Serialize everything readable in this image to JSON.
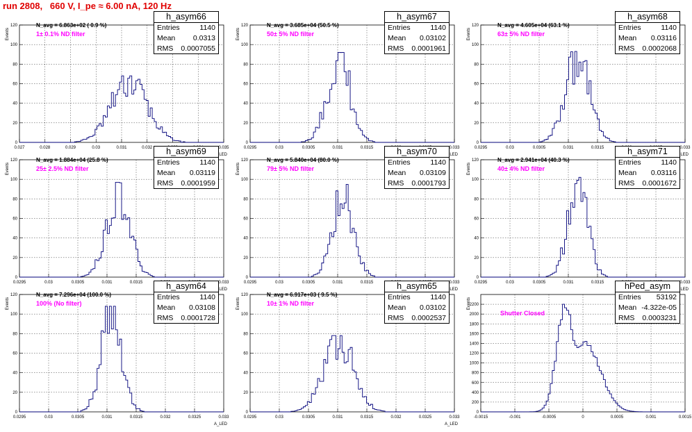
{
  "title": "run 2808,   660 V, I_pe ≈ 6.00 nA, 120 Hz",
  "colors": {
    "title": "#e00000",
    "hist": "#00007a",
    "filter_label": "#ff00ff",
    "grid": "#000000"
  },
  "chart_data": [
    {
      "type": "histogram",
      "name": "h_asym66",
      "entries": "1140",
      "mean": "0.0313",
      "rms": "0.0007055",
      "navg": "N_avg = 6.863e+02 ( 0.9 %)",
      "label": "1± 0.1% ND filter",
      "xlim": [
        0.027,
        0.035
      ],
      "ylim": [
        0,
        120
      ],
      "yticks": [
        0,
        20,
        40,
        60,
        80,
        100,
        120
      ],
      "xticks": [
        {
          "v": 0.027,
          "t": "0.027"
        },
        {
          "v": 0.028,
          "t": "0.028"
        },
        {
          "v": 0.029,
          "t": "0.029"
        },
        {
          "v": 0.03,
          "t": "0.03"
        },
        {
          "v": 0.031,
          "t": "0.031"
        },
        {
          "v": 0.032,
          "t": "0.032"
        },
        {
          "v": 0.033,
          "t": "0.033"
        },
        {
          "v": 0.034,
          "t": "0.034"
        },
        {
          "v": 0.035,
          "t": "0.035"
        }
      ],
      "ylabel": "Events",
      "xlabel": "A_LED",
      "peak": 68,
      "mu": 0.0313,
      "sigma": 0.0007
    },
    {
      "type": "histogram",
      "name": "h_asym67",
      "entries": "1140",
      "mean": "0.03102",
      "rms": "0.0001961",
      "navg": "N_avg = 3.685e+04 (50.5 %)",
      "label": "50± 5% ND filter",
      "xlim": [
        0.0295,
        0.033
      ],
      "ylim": [
        0,
        120
      ],
      "yticks": [
        0,
        20,
        40,
        60,
        80,
        100,
        120
      ],
      "xticks": [
        {
          "v": 0.0295,
          "t": "0.0295"
        },
        {
          "v": 0.03,
          "t": "0.03"
        },
        {
          "v": 0.0305,
          "t": "0.0305"
        },
        {
          "v": 0.031,
          "t": "0.031"
        },
        {
          "v": 0.0315,
          "t": "0.0315"
        },
        {
          "v": 0.032,
          "t": "0.032"
        },
        {
          "v": 0.0325,
          "t": "0.0325"
        },
        {
          "v": 0.033,
          "t": "0.033"
        }
      ],
      "ylabel": "Events",
      "xlabel": "A_LED",
      "peak": 92,
      "mu": 0.03102,
      "sigma": 0.000196
    },
    {
      "type": "histogram",
      "name": "h_asym68",
      "entries": "1140",
      "mean": "0.03116",
      "rms": "0.0002068",
      "navg": "N_avg = 4.605e+04 (63.1 %)",
      "label": "63± 5% ND filter",
      "xlim": [
        0.0295,
        0.033
      ],
      "ylim": [
        0,
        120
      ],
      "yticks": [
        0,
        20,
        40,
        60,
        80,
        100,
        120
      ],
      "xticks": [
        {
          "v": 0.0295,
          "t": "0.0295"
        },
        {
          "v": 0.03,
          "t": "0.03"
        },
        {
          "v": 0.0305,
          "t": "0.0305"
        },
        {
          "v": 0.031,
          "t": "0.031"
        },
        {
          "v": 0.0315,
          "t": "0.0315"
        },
        {
          "v": 0.032,
          "t": "0.032"
        },
        {
          "v": 0.0325,
          "t": "0.0325"
        },
        {
          "v": 0.033,
          "t": "0.033"
        }
      ],
      "ylabel": "Events",
      "xlabel": "A_LED",
      "peak": 93,
      "mu": 0.03116,
      "sigma": 0.000207
    },
    {
      "type": "histogram",
      "name": "h_asym69",
      "entries": "1140",
      "mean": "0.03119",
      "rms": "0.0001959",
      "navg": "N_avg = 1.884e+04 (25.8 %)",
      "label": "25± 2.5% ND filter",
      "xlim": [
        0.0295,
        0.033
      ],
      "ylim": [
        0,
        120
      ],
      "yticks": [
        0,
        20,
        40,
        60,
        80,
        100,
        120
      ],
      "xticks": [
        {
          "v": 0.0295,
          "t": "0.0295"
        },
        {
          "v": 0.03,
          "t": "0.03"
        },
        {
          "v": 0.0305,
          "t": "0.0305"
        },
        {
          "v": 0.031,
          "t": "0.031"
        },
        {
          "v": 0.0315,
          "t": "0.0315"
        },
        {
          "v": 0.032,
          "t": "0.032"
        },
        {
          "v": 0.0325,
          "t": "0.0325"
        },
        {
          "v": 0.033,
          "t": "0.033"
        }
      ],
      "ylabel": "Events",
      "xlabel": "A_LED",
      "peak": 97,
      "mu": 0.03119,
      "sigma": 0.000196
    },
    {
      "type": "histogram",
      "name": "h_asym70",
      "entries": "1140",
      "mean": "0.03109",
      "rms": "0.0001793",
      "navg": "N_avg = 5.840e+04 (80.0 %)",
      "label": "79± 5% ND filter",
      "xlim": [
        0.0295,
        0.033
      ],
      "ylim": [
        0,
        120
      ],
      "yticks": [
        0,
        20,
        40,
        60,
        80,
        100,
        120
      ],
      "xticks": [
        {
          "v": 0.0295,
          "t": "0.0295"
        },
        {
          "v": 0.03,
          "t": "0.03"
        },
        {
          "v": 0.0305,
          "t": "0.0305"
        },
        {
          "v": 0.031,
          "t": "0.031"
        },
        {
          "v": 0.0315,
          "t": "0.0315"
        },
        {
          "v": 0.032,
          "t": "0.032"
        },
        {
          "v": 0.0325,
          "t": "0.0325"
        },
        {
          "v": 0.033,
          "t": "0.033"
        }
      ],
      "ylabel": "Events",
      "xlabel": "A_LED",
      "peak": 96,
      "mu": 0.03109,
      "sigma": 0.000179
    },
    {
      "type": "histogram",
      "name": "h_asym71",
      "entries": "1140",
      "mean": "0.03116",
      "rms": "0.0001672",
      "navg": "N_avg = 2.941e+04 (40.3 %)",
      "label": "40± 4% ND filter",
      "xlim": [
        0.0295,
        0.033
      ],
      "ylim": [
        0,
        120
      ],
      "yticks": [
        0,
        20,
        40,
        60,
        80,
        100,
        120
      ],
      "xticks": [
        {
          "v": 0.0295,
          "t": "0.0295"
        },
        {
          "v": 0.03,
          "t": "0.03"
        },
        {
          "v": 0.0305,
          "t": "0.0305"
        },
        {
          "v": 0.031,
          "t": "0.031"
        },
        {
          "v": 0.0315,
          "t": "0.0315"
        },
        {
          "v": 0.032,
          "t": "0.032"
        },
        {
          "v": 0.0325,
          "t": "0.0325"
        },
        {
          "v": 0.033,
          "t": "0.033"
        }
      ],
      "ylabel": "Events",
      "xlabel": "A_LED",
      "peak": 102,
      "mu": 0.03116,
      "sigma": 0.000167
    },
    {
      "type": "histogram",
      "name": "h_asym64",
      "entries": "1140",
      "mean": "0.03108",
      "rms": "0.0001728",
      "navg": "N_avg = 7.296e+04 (100.0 %)",
      "label": "100% (No filter)",
      "xlim": [
        0.0295,
        0.033
      ],
      "ylim": [
        0,
        120
      ],
      "yticks": [
        0,
        20,
        40,
        60,
        80,
        100,
        120
      ],
      "xticks": [
        {
          "v": 0.0295,
          "t": "0.0295"
        },
        {
          "v": 0.03,
          "t": "0.03"
        },
        {
          "v": 0.0305,
          "t": "0.0305"
        },
        {
          "v": 0.031,
          "t": "0.031"
        },
        {
          "v": 0.0315,
          "t": "0.0315"
        },
        {
          "v": 0.032,
          "t": "0.032"
        },
        {
          "v": 0.0325,
          "t": "0.0325"
        },
        {
          "v": 0.033,
          "t": "0.033"
        }
      ],
      "ylabel": "Events",
      "xlabel": "A_LED",
      "peak": 108,
      "mu": 0.03108,
      "sigma": 0.000173
    },
    {
      "type": "histogram",
      "name": "h_asym65",
      "entries": "1140",
      "mean": "0.03102",
      "rms": "0.0002537",
      "navg": "N_avg = 6.917e+03 ( 9.5 %)",
      "label": "10± 1% ND filter",
      "xlim": [
        0.0295,
        0.033
      ],
      "ylim": [
        0,
        120
      ],
      "yticks": [
        0,
        20,
        40,
        60,
        80,
        100,
        120
      ],
      "xticks": [
        {
          "v": 0.0295,
          "t": "0.0295"
        },
        {
          "v": 0.03,
          "t": "0.03"
        },
        {
          "v": 0.0305,
          "t": "0.0305"
        },
        {
          "v": 0.031,
          "t": "0.031"
        },
        {
          "v": 0.0315,
          "t": "0.0315"
        },
        {
          "v": 0.032,
          "t": "0.032"
        },
        {
          "v": 0.0325,
          "t": "0.0325"
        },
        {
          "v": 0.033,
          "t": "0.033"
        }
      ],
      "ylabel": "Events",
      "xlabel": "A_LED",
      "peak": 78,
      "mu": 0.03102,
      "sigma": 0.000254
    },
    {
      "type": "histogram",
      "name": "hPed_asym",
      "entries": "53192",
      "mean": "-4.322e-05",
      "rms": "0.0003231",
      "navg": "",
      "label": "Shutter Closed",
      "xlim": [
        -0.0015,
        0.0015
      ],
      "ylim": [
        0,
        2400
      ],
      "yticks": [
        0,
        200,
        400,
        600,
        800,
        1000,
        1200,
        1400,
        1600,
        1800,
        2000,
        2200
      ],
      "xticks": [
        {
          "v": -0.0015,
          "t": "-0.0015"
        },
        {
          "v": -0.001,
          "t": "-0.001"
        },
        {
          "v": -0.0005,
          "t": "-0.0005"
        },
        {
          "v": 0,
          "t": "0"
        },
        {
          "v": 0.0005,
          "t": "0.0005"
        },
        {
          "v": 0.001,
          "t": "0.001"
        },
        {
          "v": 0.0015,
          "t": "0.0015"
        }
      ],
      "ylabel": "Events",
      "xlabel": "",
      "peak": 2200,
      "mu": -0.00025,
      "sigma": 0.00013,
      "bimodal": true
    }
  ]
}
